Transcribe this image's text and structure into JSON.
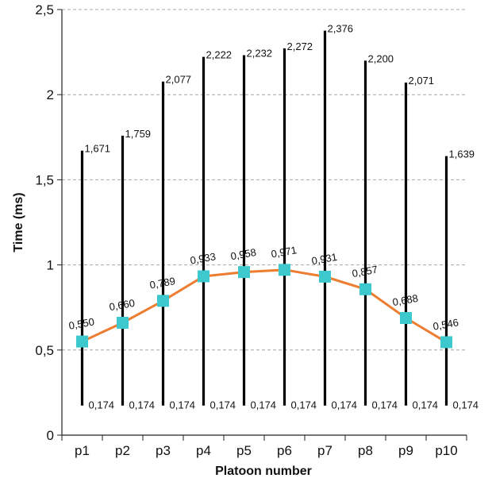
{
  "chart_data": {
    "type": "line",
    "title": "",
    "xlabel": "Platoon number",
    "ylabel": "Time (ms)",
    "categories": [
      "p1",
      "p2",
      "p3",
      "p4",
      "p5",
      "p6",
      "p7",
      "p8",
      "p9",
      "p10"
    ],
    "ylim": [
      0,
      2.5
    ],
    "yticks": [
      0,
      0.5,
      1,
      1.5,
      2,
      2.5
    ],
    "ytick_labels": [
      "0",
      "0,5",
      "1",
      "1,5",
      "2",
      "2,5"
    ],
    "grid": true,
    "legend": "none",
    "series": [
      {
        "role": "mean",
        "marker": "square",
        "values": [
          0.55,
          0.66,
          0.789,
          0.933,
          0.958,
          0.971,
          0.931,
          0.857,
          0.688,
          0.546
        ],
        "labels": [
          "0,550",
          "0,660",
          "0,789",
          "0,933",
          "0,958",
          "0,971",
          "0,931",
          "0,857",
          "0,688",
          "0,546"
        ]
      },
      {
        "role": "max",
        "values": [
          1.671,
          1.759,
          2.077,
          2.222,
          2.232,
          2.272,
          2.376,
          2.2,
          2.071,
          1.639
        ],
        "labels": [
          "1,671",
          "1,759",
          "2,077",
          "2,222",
          "2,232",
          "2,272",
          "2,376",
          "2,200",
          "2,071",
          "1,639"
        ]
      },
      {
        "role": "min",
        "values": [
          0.174,
          0.174,
          0.174,
          0.174,
          0.174,
          0.174,
          0.174,
          0.174,
          0.174,
          0.174
        ],
        "labels": [
          "0,174",
          "0,174",
          "0,174",
          "0,174",
          "0,174",
          "0,174",
          "0,174",
          "0,174",
          "0,174",
          "0,174"
        ]
      }
    ],
    "colors": {
      "line": "#ED7D31",
      "marker": "#3CC8CC",
      "range_bar": "#000000",
      "grid": "#A6A6A6"
    }
  }
}
